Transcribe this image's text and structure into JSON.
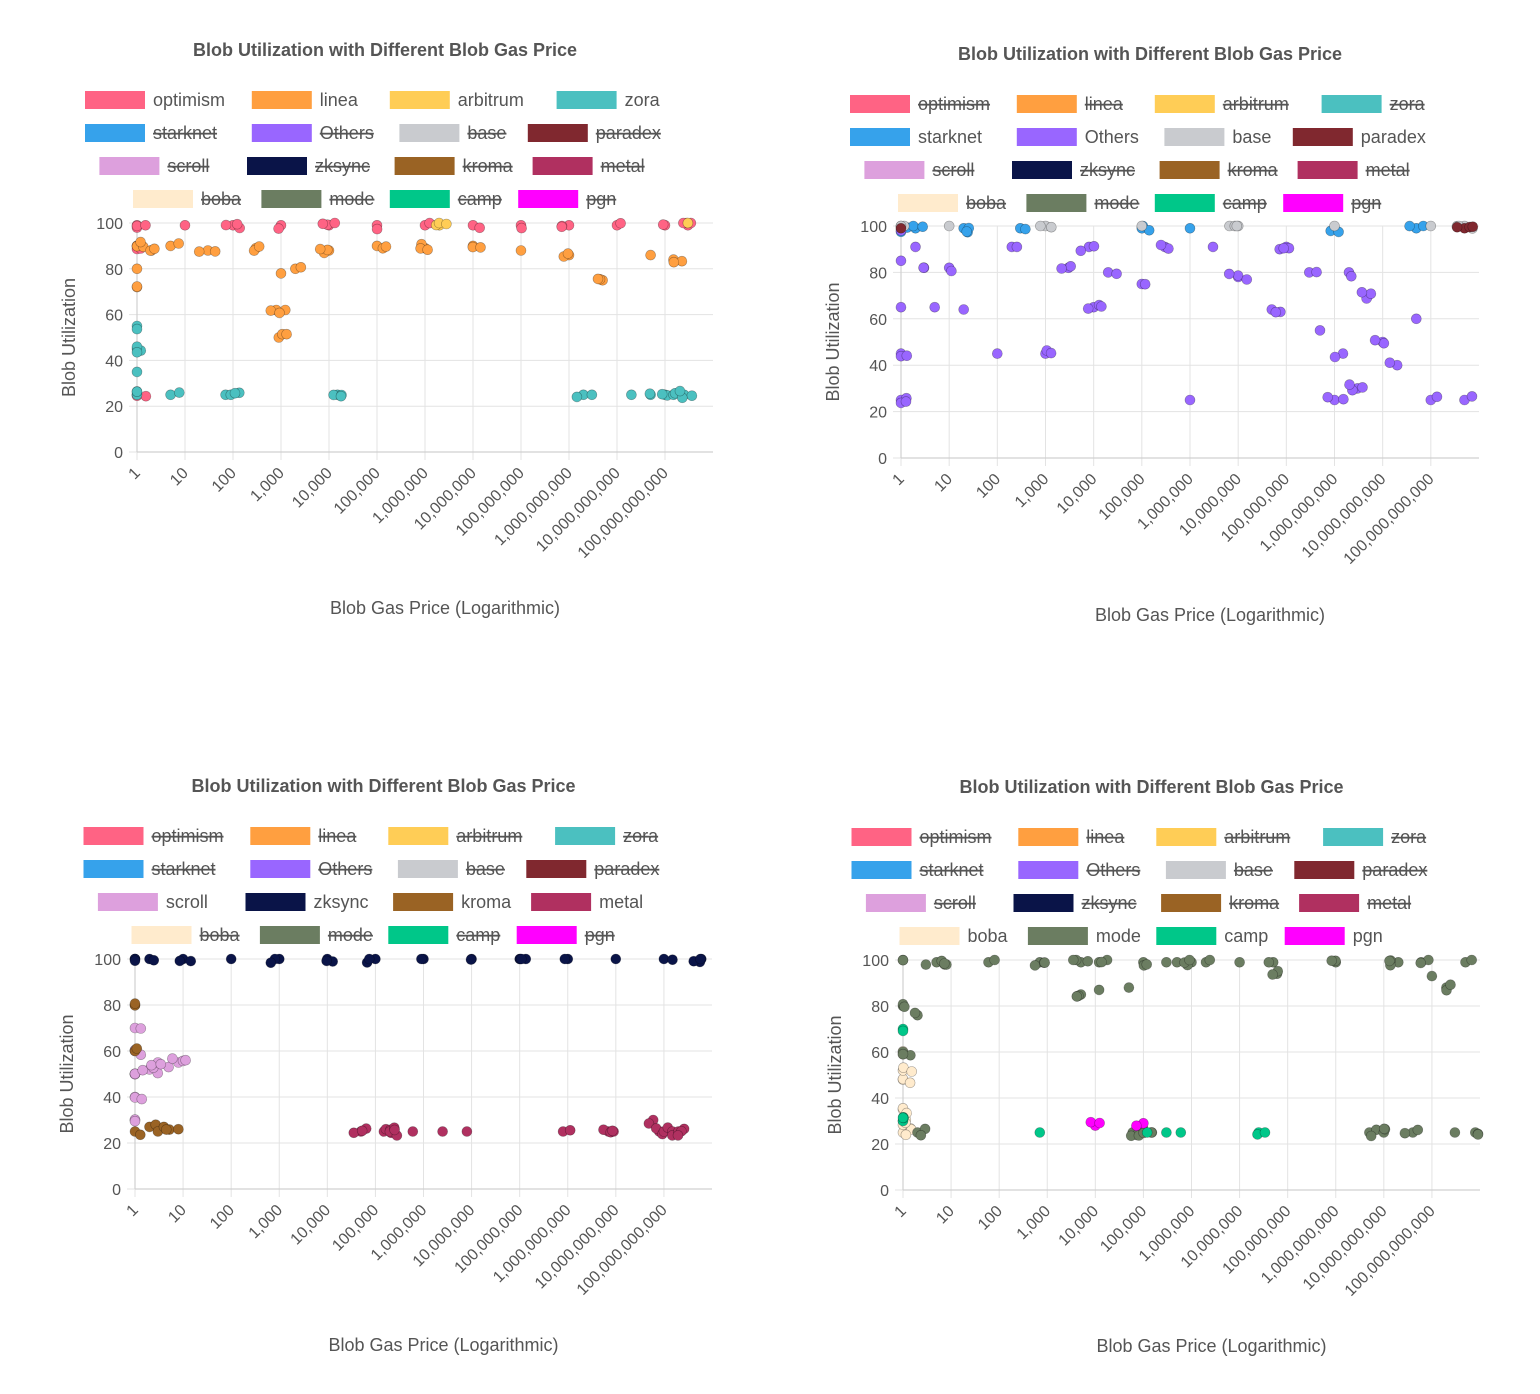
{
  "legend_items": [
    {
      "name": "optimism",
      "color": "#ff6384"
    },
    {
      "name": "linea",
      "color": "#ff9f40"
    },
    {
      "name": "arbitrum",
      "color": "#ffcd56"
    },
    {
      "name": "zora",
      "color": "#4bc0c0"
    },
    {
      "name": "starknet",
      "color": "#36a2eb"
    },
    {
      "name": "Others",
      "color": "#9966ff"
    },
    {
      "name": "base",
      "color": "#c9cbcf"
    },
    {
      "name": "paradex",
      "color": "#80282f"
    },
    {
      "name": "scroll",
      "color": "#dda0dd"
    },
    {
      "name": "zksync",
      "color": "#0a1448"
    },
    {
      "name": "kroma",
      "color": "#9a6324"
    },
    {
      "name": "metal",
      "color": "#b03060"
    },
    {
      "name": "boba",
      "color": "#ffebcd"
    },
    {
      "name": "mode",
      "color": "#6b7d61"
    },
    {
      "name": "camp",
      "color": "#00c789"
    },
    {
      "name": "pgn",
      "color": "#ff00ff"
    }
  ],
  "chart_data": [
    {
      "type": "scatter",
      "title": "Blob Utilization with Different Blob Gas Price",
      "xlabel": "Blob Gas Price (Logarithmic)",
      "ylabel": "Blob Utilization",
      "x_scale": "log",
      "xlim": [
        1,
        1000000000000
      ],
      "ylim": [
        0,
        100
      ],
      "x_ticks": [
        "1",
        "10",
        "100",
        "1,000",
        "10,000",
        "100,000",
        "1,000,000",
        "10,000,000",
        "100,000,000",
        "1,000,000,000",
        "10,000,000,000",
        "100,000,000,000"
      ],
      "y_ticks": [
        "0",
        "20",
        "40",
        "60",
        "80",
        "100"
      ],
      "legend_position": "top",
      "visible_series": [
        "optimism",
        "linea",
        "arbitrum",
        "zora"
      ],
      "series": [
        {
          "name": "optimism",
          "x": [
            1,
            1,
            1,
            1.5,
            10,
            100,
            1000,
            10000,
            100000,
            1000000,
            10000000,
            100000000,
            1000000000,
            10000000000,
            100000000000,
            300000000000
          ],
          "y": [
            25,
            90,
            99,
            99,
            99,
            99,
            99,
            99,
            99,
            99,
            99,
            99,
            99,
            99,
            99,
            99
          ]
        },
        {
          "name": "linea",
          "x": [
            1,
            1,
            1,
            2,
            5,
            30,
            300,
            800,
            900,
            1000,
            2000,
            10000,
            100000,
            1000000,
            10000000,
            100000000,
            1000000000,
            5000000000,
            50000000000,
            150000000000
          ],
          "y": [
            72,
            80,
            90,
            88,
            90,
            88,
            89,
            62,
            50,
            78,
            80,
            88,
            90,
            89,
            90,
            88,
            86,
            75,
            86,
            84
          ]
        },
        {
          "name": "arbitrum",
          "x": [
            2000000,
            300000000000
          ],
          "y": [
            99,
            100
          ]
        },
        {
          "name": "zora",
          "x": [
            1,
            1,
            1,
            1,
            5,
            70,
            90,
            15000,
            2000000000,
            3000000000,
            20000000000,
            50000000000,
            100000000000,
            150000000000,
            250000000000
          ],
          "y": [
            25,
            35,
            45,
            55,
            25,
            25,
            25,
            25,
            25,
            25,
            25,
            25,
            25,
            25,
            25
          ]
        }
      ]
    },
    {
      "type": "scatter",
      "title": "Blob Utilization with Different Blob Gas Price",
      "xlabel": "Blob Gas Price (Logarithmic)",
      "ylabel": "Blob Utilization",
      "x_scale": "log",
      "xlim": [
        1,
        1000000000000
      ],
      "ylim": [
        0,
        100
      ],
      "x_ticks": [
        "1",
        "10",
        "100",
        "1,000",
        "10,000",
        "100,000",
        "1,000,000",
        "10,000,000",
        "100,000,000",
        "1,000,000,000",
        "10,000,000,000",
        "100,000,000,000"
      ],
      "y_ticks": [
        "0",
        "20",
        "40",
        "60",
        "80",
        "100"
      ],
      "legend_position": "top",
      "visible_series": [
        "starknet",
        "Others",
        "base",
        "paradex"
      ],
      "series": [
        {
          "name": "starknet",
          "x": [
            1,
            2,
            20,
            300,
            100000,
            1000000,
            1000000000,
            50000000000
          ],
          "y": [
            99,
            99,
            99,
            99,
            99,
            99,
            99,
            99
          ]
        },
        {
          "name": "Others",
          "x": [
            1,
            1,
            1,
            1,
            1,
            2,
            3,
            5,
            10,
            20,
            100,
            200,
            1000,
            3000,
            8000,
            10000,
            20000,
            100000,
            300000,
            1000000,
            3000000,
            10000000,
            50000000,
            100000000,
            300000000,
            500000000,
            1000000000,
            1500000000,
            2000000000,
            3000000000,
            5000000000,
            10000000000,
            20000000000,
            50000000000,
            100000000000,
            500000000000
          ],
          "y": [
            25,
            45,
            65,
            85,
            98,
            91,
            82,
            65,
            82,
            64,
            45,
            91,
            45,
            82,
            91,
            65,
            80,
            75,
            91,
            25,
            91,
            78,
            64,
            91,
            80,
            55,
            25,
            45,
            80,
            30,
            70,
            50,
            40,
            60,
            25,
            25
          ]
        },
        {
          "name": "base",
          "x": [
            1,
            10,
            1000,
            100000,
            10000000,
            1000000000,
            100000000000,
            500000000000
          ],
          "y": [
            100,
            100,
            100,
            100,
            100,
            100,
            100,
            100
          ]
        },
        {
          "name": "paradex",
          "x": [
            1,
            500000000000
          ],
          "y": [
            99,
            99
          ]
        }
      ]
    },
    {
      "type": "scatter",
      "title": "Blob Utilization with Different Blob Gas Price",
      "xlabel": "Blob Gas Price (Logarithmic)",
      "ylabel": "Blob Utilization",
      "x_scale": "log",
      "xlim": [
        1,
        1000000000000
      ],
      "ylim": [
        0,
        100
      ],
      "x_ticks": [
        "1",
        "10",
        "100",
        "1,000",
        "10,000",
        "100,000",
        "1,000,000",
        "10,000,000",
        "100,000,000",
        "1,000,000,000",
        "10,000,000,000",
        "100,000,000,000"
      ],
      "y_ticks": [
        "0",
        "20",
        "40",
        "60",
        "80",
        "100"
      ],
      "legend_position": "top",
      "visible_series": [
        "scroll",
        "zksync",
        "kroma",
        "metal"
      ],
      "series": [
        {
          "name": "scroll",
          "x": [
            1,
            1,
            1,
            1,
            1,
            2,
            3,
            5,
            8
          ],
          "y": [
            30,
            40,
            50,
            60,
            70,
            52,
            55,
            53,
            55
          ]
        },
        {
          "name": "zksync",
          "x": [
            1,
            2,
            10,
            100,
            1000,
            10000,
            100000,
            1000000,
            10000000,
            100000000,
            1000000000,
            10000000000,
            100000000000,
            600000000000
          ],
          "y": [
            100,
            100,
            100,
            100,
            100,
            100,
            100,
            100,
            100,
            100,
            100,
            100,
            100,
            100
          ]
        },
        {
          "name": "kroma",
          "x": [
            1,
            1,
            1,
            2,
            3,
            4,
            8
          ],
          "y": [
            25,
            60,
            80,
            27,
            25,
            27,
            26
          ]
        },
        {
          "name": "metal",
          "x": [
            50000,
            150000,
            200000,
            600000,
            2500000,
            8000000,
            800000000,
            7000000000,
            9000000000,
            60000000000,
            80000000000,
            100000000000,
            150000000000,
            200000000000
          ],
          "y": [
            25,
            25,
            25,
            25,
            25,
            25,
            25,
            25,
            25,
            30,
            25,
            25,
            25,
            25
          ]
        }
      ]
    },
    {
      "type": "scatter",
      "title": "Blob Utilization with Different Blob Gas Price",
      "xlabel": "Blob Gas Price (Logarithmic)",
      "ylabel": "Blob Utilization",
      "x_scale": "log",
      "xlim": [
        1,
        1000000000000
      ],
      "ylim": [
        0,
        100
      ],
      "x_ticks": [
        "1",
        "10",
        "100",
        "1,000",
        "10,000",
        "100,000",
        "1,000,000",
        "10,000,000",
        "100,000,000",
        "1,000,000,000",
        "10,000,000,000",
        "100,000,000,000"
      ],
      "y_ticks": [
        "0",
        "20",
        "40",
        "60",
        "80",
        "100"
      ],
      "legend_position": "top",
      "visible_series": [
        "boba",
        "mode",
        "camp",
        "pgn"
      ],
      "series": [
        {
          "name": "boba",
          "x": [
            1,
            1,
            1,
            1,
            1,
            1
          ],
          "y": [
            25,
            30,
            35,
            48,
            52,
            59
          ]
        },
        {
          "name": "mode",
          "x": [
            1,
            1,
            1,
            2,
            2,
            3,
            5,
            8,
            60,
            700,
            5000,
            5000,
            12000,
            12000,
            50000,
            60000,
            100000,
            150000,
            300000,
            500000,
            1000000,
            2000000,
            10000000,
            50000000,
            60000000,
            1000000000,
            5000000000,
            10000000000,
            20000000000,
            40000000000,
            60000000000,
            100000000000,
            200000000000,
            300000000000,
            500000000000,
            800000000000
          ],
          "y": [
            60,
            80,
            100,
            76,
            25,
            98,
            99,
            98,
            99,
            99,
            99,
            85,
            99,
            87,
            88,
            25,
            99,
            25,
            99,
            99,
            99,
            99,
            99,
            99,
            94,
            99,
            25,
            25,
            99,
            25,
            99,
            93,
            88,
            25,
            99,
            25
          ]
        },
        {
          "name": "camp",
          "x": [
            1,
            1,
            700,
            120000,
            300000,
            600000,
            25000000
          ],
          "y": [
            30,
            70,
            25,
            25,
            25,
            25,
            25
          ]
        },
        {
          "name": "pgn",
          "x": [
            10000,
            100000
          ],
          "y": [
            28,
            29
          ]
        }
      ]
    }
  ]
}
